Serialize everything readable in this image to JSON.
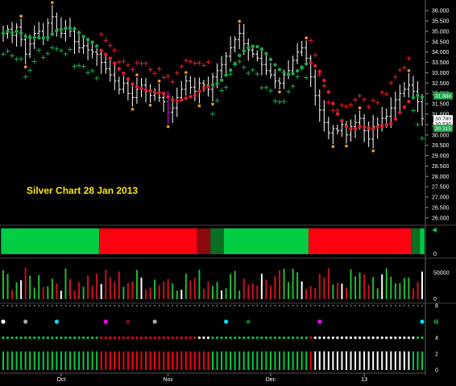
{
  "overlay_title": "Silver Chart 28 Jan 2013",
  "colors": {
    "background": "#000000",
    "price_bar": "#ffffff",
    "ma_dot_up": "#1ea84a",
    "ma_dot_down": "#e8202a",
    "stop_down": "#e8202a",
    "stop_up": "#1ea84a",
    "swing_high": "#ff9a1a",
    "swing_low": "#ff9a1a",
    "trend_green": "#00cc44",
    "trend_red": "#ff0010",
    "trend_darkred": "#8b0a10",
    "trend_darkgreen": "#0b6e22",
    "vol_green": "#22bb33",
    "vol_red": "#d01020",
    "vol_white": "#ffffff",
    "cyan": "#00e5ff",
    "magenta": "#ff00ff"
  },
  "chart_data": {
    "type": "ohlc",
    "price_axis": {
      "ticks": [
        "36.000",
        "35.500",
        "35.000",
        "34.500",
        "34.000",
        "33.500",
        "33.000",
        "32.500",
        "32.000",
        "31.500",
        "31.000",
        "30.500",
        "30.000",
        "29.500",
        "29.000",
        "28.500",
        "28.000",
        "27.500",
        "27.000",
        "26.500",
        "26.000"
      ],
      "ylim": [
        25.8,
        36.2
      ]
    },
    "price_markers": [
      {
        "label": "31.884",
        "value": 31.884,
        "color": "#1ea84a"
      },
      {
        "label": "30.780",
        "value": 30.78,
        "color": "#ffffff"
      },
      {
        "label": "30.530",
        "value": 30.53,
        "color": "#ffffff"
      },
      {
        "label": "30.315",
        "value": 30.315,
        "color": "#1ea84a"
      }
    ],
    "x_labels": [
      {
        "label": "Oct",
        "index": 13
      },
      {
        "label": "Nov",
        "index": 37
      },
      {
        "label": "Dec",
        "index": 60
      },
      {
        "label": "13",
        "index": 81
      }
    ],
    "closes": [
      34.9,
      35.1,
      34.8,
      35.2,
      34.6,
      33.9,
      34.4,
      34.9,
      35.0,
      34.7,
      35.4,
      35.7,
      35.1,
      34.9,
      35.2,
      35.0,
      34.5,
      34.2,
      34.3,
      34.1,
      34.0,
      33.9,
      33.5,
      33.2,
      32.9,
      32.6,
      32.2,
      32.5,
      32.0,
      31.8,
      32.2,
      32.4,
      32.1,
      31.9,
      32.0,
      31.8,
      31.6,
      31.1,
      31.3,
      31.8,
      32.2,
      32.6,
      32.3,
      32.1,
      32.5,
      32.4,
      32.2,
      32.8,
      33.1,
      33.4,
      33.8,
      34.2,
      34.6,
      34.9,
      34.4,
      34.1,
      33.9,
      33.7,
      33.4,
      33.1,
      32.9,
      32.6,
      32.5,
      32.9,
      33.1,
      33.6,
      34.0,
      34.2,
      33.7,
      32.8,
      31.9,
      31.2,
      30.6,
      30.1,
      30.3,
      30.2,
      30.5,
      30.0,
      30.4,
      30.6,
      30.8,
      30.2,
      29.8,
      30.4,
      30.5,
      30.8,
      30.9,
      31.3,
      31.7,
      32.0,
      32.2,
      32.4,
      32.1,
      31.6,
      30.78
    ],
    "trend_bar": {
      "segments": [
        {
          "from": 0,
          "to": 21,
          "state": "green"
        },
        {
          "from": 22,
          "to": 43,
          "state": "red"
        },
        {
          "from": 44,
          "to": 46,
          "state": "darkred"
        },
        {
          "from": 47,
          "to": 49,
          "state": "darkgreen"
        },
        {
          "from": 50,
          "to": 68,
          "state": "green"
        },
        {
          "from": 69,
          "to": 91,
          "state": "red"
        },
        {
          "from": 92,
          "to": 93,
          "state": "darkgreen"
        },
        {
          "from": 94,
          "to": 100,
          "state": "green"
        }
      ],
      "axis_ticks": [
        "0"
      ]
    },
    "volume": {
      "axis_ticks": [
        "50000",
        "0"
      ],
      "ymax": 70000
    },
    "signal_panel": {
      "axis_ticks": [
        "8",
        "6",
        "4",
        "2",
        "0"
      ],
      "dots": [
        {
          "index": 0,
          "color": "#ffffff"
        },
        {
          "index": 5,
          "color": "#aaaaaa"
        },
        {
          "index": 12,
          "color": "#00e5ff"
        },
        {
          "index": 23,
          "color": "#ff00ff"
        },
        {
          "index": 28,
          "color": "#8b0a10"
        },
        {
          "index": 34,
          "color": "#aaaaaa"
        },
        {
          "index": 50,
          "color": "#00e5ff"
        },
        {
          "index": 55,
          "color": "#0b6e22"
        },
        {
          "index": 71,
          "color": "#ff00ff"
        },
        {
          "index": 94,
          "color": "#00e5ff"
        },
        {
          "index": 97,
          "color": "#0b6e22"
        }
      ]
    }
  }
}
